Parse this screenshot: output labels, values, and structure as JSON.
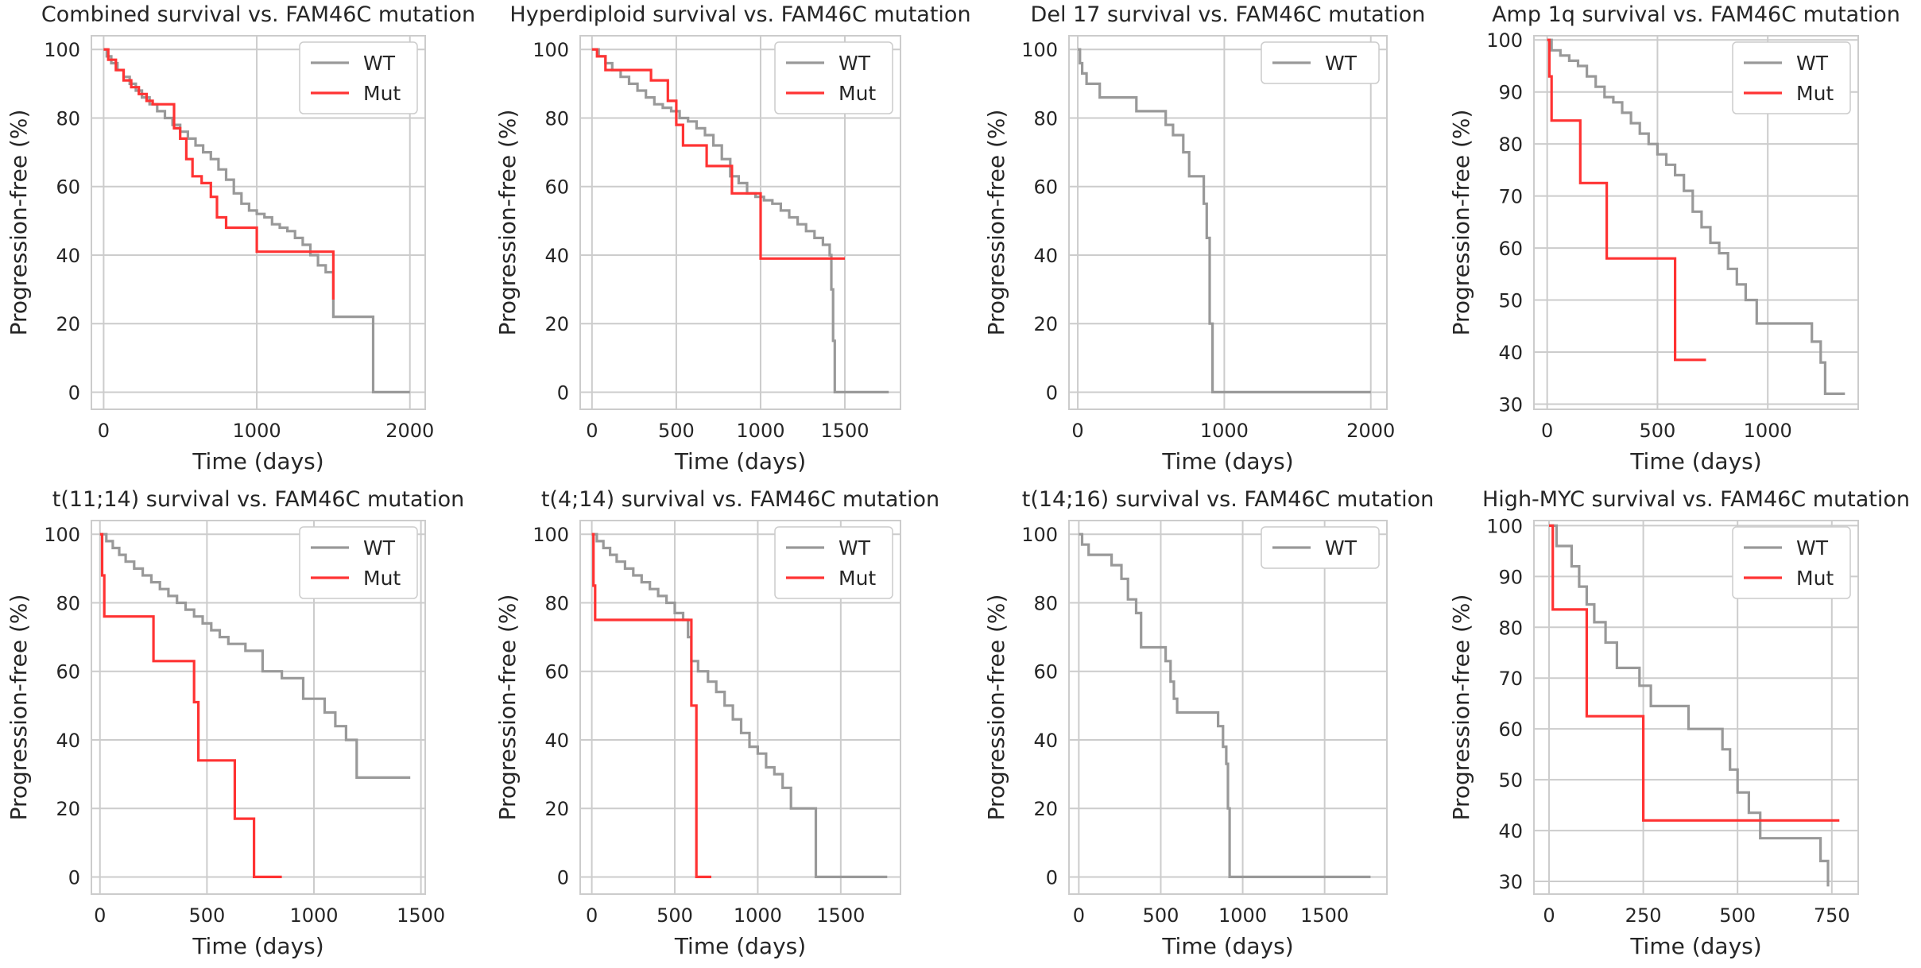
{
  "figure": {
    "x_label": "Time (days)",
    "y_label": "Progression-free (%)"
  },
  "colors": {
    "WT": "#999999",
    "Mut": "#ff3333"
  },
  "chart_data": [
    {
      "type": "line",
      "step": true,
      "title": "Combined survival vs. FAM46C mutation",
      "xlabel": "Time (days)",
      "ylabel": "Progression-free (%)",
      "xlim": [
        -80,
        2100
      ],
      "ylim": [
        -5,
        104
      ],
      "xticks": [
        0,
        1000,
        2000
      ],
      "yticks": [
        0,
        20,
        40,
        60,
        80,
        100
      ],
      "series": [
        {
          "name": "WT",
          "x": [
            0,
            20,
            50,
            90,
            130,
            170,
            210,
            250,
            300,
            350,
            400,
            450,
            500,
            550,
            600,
            650,
            700,
            750,
            800,
            850,
            900,
            950,
            1000,
            1050,
            1100,
            1150,
            1200,
            1250,
            1300,
            1350,
            1400,
            1450,
            1500,
            1500,
            1760,
            1760,
            2000
          ],
          "y": [
            100,
            98,
            96,
            94,
            92,
            90,
            88,
            86,
            84,
            82,
            80,
            78,
            76,
            74,
            72,
            70,
            68,
            65,
            62,
            58,
            55,
            53,
            52,
            51,
            49,
            48,
            47,
            45,
            43,
            40,
            37,
            35,
            30,
            22,
            22,
            0,
            0
          ]
        },
        {
          "name": "Mut",
          "x": [
            0,
            30,
            80,
            130,
            180,
            230,
            280,
            320,
            460,
            500,
            540,
            580,
            640,
            700,
            740,
            800,
            1000,
            1500
          ],
          "y": [
            100,
            97,
            94,
            91,
            89,
            87,
            85,
            84,
            77,
            74,
            68,
            63,
            61,
            57,
            51,
            48,
            41,
            27
          ]
        }
      ]
    },
    {
      "type": "line",
      "step": true,
      "title": "Hyperdiploid survival vs. FAM46C mutation",
      "xlabel": "Time (days)",
      "ylabel": "Progression-free (%)",
      "xlim": [
        -70,
        1830
      ],
      "ylim": [
        -5,
        104
      ],
      "xticks": [
        0,
        500,
        1000,
        1500
      ],
      "yticks": [
        0,
        20,
        40,
        60,
        80,
        100
      ],
      "series": [
        {
          "name": "WT",
          "x": [
            0,
            40,
            80,
            120,
            170,
            220,
            270,
            320,
            370,
            420,
            470,
            520,
            570,
            620,
            670,
            720,
            770,
            820,
            870,
            920,
            970,
            1020,
            1070,
            1120,
            1170,
            1220,
            1270,
            1320,
            1370,
            1410,
            1420,
            1430,
            1440,
            1760
          ],
          "y": [
            100,
            98,
            96,
            94,
            92,
            90,
            88,
            86,
            84,
            83,
            82,
            80,
            79,
            77,
            75,
            72,
            68,
            63,
            61,
            58,
            57,
            56,
            55,
            53,
            51,
            49,
            47,
            45,
            43,
            40,
            30,
            15,
            0,
            0
          ]
        },
        {
          "name": "Mut",
          "x": [
            0,
            30,
            80,
            300,
            350,
            450,
            500,
            540,
            560,
            590,
            680,
            830,
            1000,
            1500
          ],
          "y": [
            100,
            98,
            94,
            94,
            91,
            85,
            78,
            72,
            72,
            72,
            66,
            58,
            39,
            39
          ]
        }
      ]
    },
    {
      "type": "line",
      "step": true,
      "title": "Del 17 survival vs. FAM46C mutation",
      "xlabel": "Time (days)",
      "ylabel": "Progression-free (%)",
      "xlim": [
        -60,
        2110
      ],
      "ylim": [
        -5,
        104
      ],
      "xticks": [
        0,
        1000,
        2000
      ],
      "yticks": [
        0,
        20,
        40,
        60,
        80,
        100
      ],
      "series": [
        {
          "name": "WT",
          "x": [
            0,
            15,
            30,
            60,
            150,
            400,
            600,
            650,
            720,
            760,
            840,
            860,
            880,
            900,
            920,
            2000
          ],
          "y": [
            100,
            96,
            93,
            90,
            86,
            82,
            78,
            75,
            70,
            63,
            63,
            55,
            45,
            20,
            0,
            0
          ]
        }
      ]
    },
    {
      "type": "line",
      "step": true,
      "title": "Amp 1q survival vs. FAM46C mutation",
      "xlabel": "Time (days)",
      "ylabel": "Progression-free (%)",
      "xlim": [
        -60,
        1410
      ],
      "ylim": [
        29,
        100.8
      ],
      "xticks": [
        0,
        500,
        1000
      ],
      "yticks": [
        30,
        40,
        50,
        60,
        70,
        80,
        90,
        100
      ],
      "series": [
        {
          "name": "WT",
          "x": [
            0,
            20,
            60,
            100,
            140,
            180,
            220,
            260,
            300,
            340,
            380,
            420,
            460,
            500,
            540,
            580,
            620,
            660,
            700,
            740,
            780,
            820,
            860,
            900,
            950,
            1000,
            1050,
            1100,
            1150,
            1200,
            1240,
            1260,
            1350
          ],
          "y": [
            100,
            98,
            97,
            96,
            95,
            93,
            91,
            89,
            88,
            86,
            84,
            82,
            80,
            78,
            76,
            74,
            71,
            67,
            64,
            61,
            59,
            56,
            53,
            50,
            45.5,
            45.5,
            45.5,
            45.5,
            45.5,
            42,
            38,
            32,
            32
          ]
        },
        {
          "name": "Mut",
          "x": [
            0,
            10,
            20,
            150,
            270,
            580,
            720
          ],
          "y": [
            100,
            93,
            84.5,
            72.5,
            58,
            38.5,
            38.5
          ]
        }
      ]
    },
    {
      "type": "line",
      "step": true,
      "title": "t(11;14) survival vs. FAM46C mutation",
      "xlabel": "Time (days)",
      "ylabel": "Progression-free (%)",
      "xlim": [
        -40,
        1520
      ],
      "ylim": [
        -5,
        104
      ],
      "xticks": [
        0,
        500,
        1000,
        1500
      ],
      "yticks": [
        0,
        20,
        40,
        60,
        80,
        100
      ],
      "series": [
        {
          "name": "WT",
          "x": [
            0,
            30,
            60,
            90,
            120,
            160,
            200,
            240,
            280,
            320,
            360,
            400,
            440,
            480,
            520,
            560,
            600,
            680,
            760,
            850,
            950,
            1050,
            1100,
            1150,
            1200,
            1450
          ],
          "y": [
            100,
            98,
            96,
            94,
            92,
            90,
            88,
            86,
            84,
            82,
            80,
            78,
            76,
            74,
            72,
            70,
            68,
            66,
            60,
            58,
            52,
            48,
            44,
            40,
            29,
            29
          ]
        },
        {
          "name": "Mut",
          "x": [
            0,
            10,
            20,
            250,
            440,
            460,
            630,
            720,
            850
          ],
          "y": [
            100,
            88,
            76,
            63,
            51,
            34,
            17,
            0,
            0
          ]
        }
      ]
    },
    {
      "type": "line",
      "step": true,
      "title": "t(4;14) survival vs. FAM46C mutation",
      "xlabel": "Time (days)",
      "ylabel": "Progression-free (%)",
      "xlim": [
        -70,
        1860
      ],
      "ylim": [
        -5,
        104
      ],
      "xticks": [
        0,
        500,
        1000,
        1500
      ],
      "yticks": [
        0,
        20,
        40,
        60,
        80,
        100
      ],
      "series": [
        {
          "name": "WT",
          "x": [
            0,
            30,
            70,
            110,
            150,
            200,
            250,
            300,
            350,
            400,
            450,
            500,
            550,
            580,
            600,
            640,
            700,
            750,
            800,
            850,
            900,
            950,
            1000,
            1050,
            1100,
            1150,
            1200,
            1250,
            1350,
            1780
          ],
          "y": [
            100,
            98,
            96,
            94,
            92,
            90,
            88,
            86,
            84,
            82,
            80,
            77,
            75,
            70,
            63,
            60,
            57,
            54,
            50,
            46,
            42,
            38,
            36,
            32,
            30,
            26,
            20,
            20,
            0,
            0
          ]
        },
        {
          "name": "Mut",
          "x": [
            0,
            10,
            20,
            560,
            600,
            630,
            720
          ],
          "y": [
            100,
            85,
            75,
            75,
            50,
            0,
            0
          ]
        }
      ]
    },
    {
      "type": "line",
      "step": true,
      "title": "t(14;16) survival vs. FAM46C mutation",
      "xlabel": "Time (days)",
      "ylabel": "Progression-free (%)",
      "xlim": [
        -60,
        1880
      ],
      "ylim": [
        -5,
        104
      ],
      "xticks": [
        0,
        500,
        1000,
        1500
      ],
      "yticks": [
        0,
        20,
        40,
        60,
        80,
        100
      ],
      "series": [
        {
          "name": "WT",
          "x": [
            0,
            20,
            60,
            200,
            260,
            300,
            350,
            380,
            530,
            560,
            580,
            600,
            850,
            880,
            900,
            910,
            920,
            1780
          ],
          "y": [
            100,
            97,
            94,
            91,
            87,
            81,
            77,
            67,
            63,
            57,
            52,
            48,
            44,
            38,
            33,
            20,
            0,
            0
          ]
        }
      ]
    },
    {
      "type": "line",
      "step": true,
      "title": "High-MYC survival vs. FAM46C mutation",
      "xlabel": "Time (days)",
      "ylabel": "Progression-free (%)",
      "xlim": [
        -40,
        820
      ],
      "ylim": [
        27.5,
        101
      ],
      "xticks": [
        0,
        250,
        500,
        750
      ],
      "yticks": [
        30,
        40,
        50,
        60,
        70,
        80,
        90,
        100
      ],
      "series": [
        {
          "name": "WT",
          "x": [
            0,
            20,
            60,
            80,
            100,
            120,
            150,
            180,
            240,
            270,
            370,
            460,
            480,
            500,
            530,
            560,
            620,
            720,
            740
          ],
          "y": [
            100,
            96,
            92,
            88,
            84.5,
            81,
            77,
            72,
            68.5,
            64.5,
            60,
            56,
            52,
            47.5,
            43.5,
            38.5,
            38.5,
            34,
            29
          ]
        },
        {
          "name": "Mut",
          "x": [
            0,
            10,
            100,
            250,
            770
          ],
          "y": [
            100,
            83.5,
            62.5,
            42,
            42
          ]
        }
      ]
    }
  ]
}
